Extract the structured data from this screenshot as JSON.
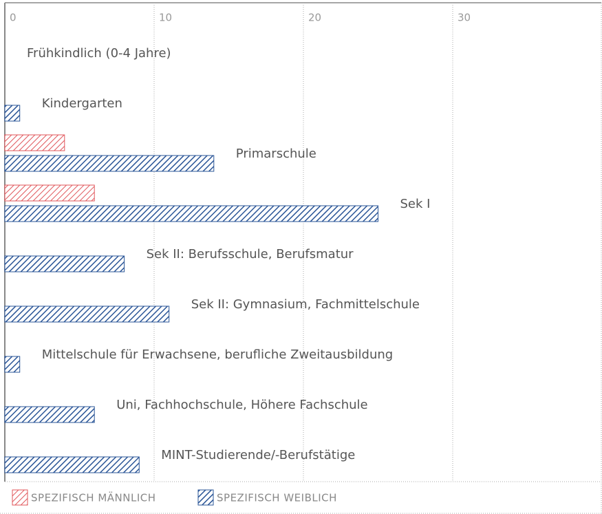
{
  "chart_data": {
    "type": "barh",
    "categories": [
      "Frühkindlich (0-4 Jahre)",
      "Kindergarten",
      "Primarschule",
      "Sek I",
      "Sek II: Berufsschule, Berufsmatur",
      "Sek II: Gymnasium, Fachmittelschule",
      "Mittelschule für Erwachsene, berufliche Zweitausbildung",
      "Uni, Fachhochschule, Höhere Fachschule",
      "MINT-Studierende/-Berufstätige"
    ],
    "series": [
      {
        "name": "SPEZIFISCH MÄNNLICH",
        "color": "#e0555a",
        "values": [
          null,
          null,
          4,
          6,
          null,
          null,
          null,
          null,
          null
        ]
      },
      {
        "name": "SPEZIFISCH WEIBLICH",
        "color": "#2a5597",
        "values": [
          null,
          1,
          14,
          25,
          8,
          11,
          1,
          6,
          9
        ]
      }
    ],
    "xlim": [
      0,
      40
    ],
    "xticks": [
      0,
      10,
      20,
      30
    ],
    "grid": true
  }
}
